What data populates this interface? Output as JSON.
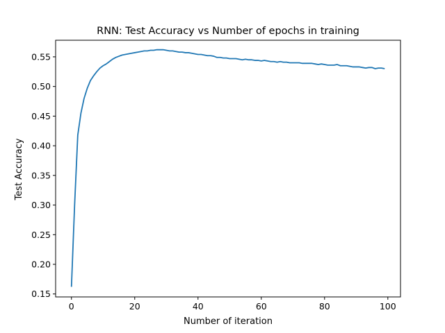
{
  "chart_data": {
    "type": "line",
    "title": "RNN: Test Accuracy vs Number of epochs in training",
    "xlabel": "Number of iteration",
    "ylabel": "Test Accuracy",
    "xlim": [
      -5,
      104
    ],
    "ylim": [
      0.145,
      0.578
    ],
    "xticks": [
      0,
      20,
      40,
      60,
      80,
      100
    ],
    "xtick_labels": [
      "0",
      "20",
      "40",
      "60",
      "80",
      "100"
    ],
    "yticks": [
      0.15,
      0.2,
      0.25,
      0.3,
      0.35,
      0.4,
      0.45,
      0.5,
      0.55
    ],
    "ytick_labels": [
      "0.15",
      "0.20",
      "0.25",
      "0.30",
      "0.35",
      "0.40",
      "0.45",
      "0.50",
      "0.55"
    ],
    "grid": false,
    "series": [
      {
        "color": "#1f77b4",
        "x": [
          0,
          1,
          2,
          3,
          4,
          5,
          6,
          7,
          8,
          9,
          10,
          11,
          12,
          13,
          14,
          15,
          16,
          17,
          18,
          19,
          20,
          21,
          22,
          23,
          24,
          25,
          26,
          27,
          28,
          29,
          30,
          31,
          32,
          33,
          34,
          35,
          36,
          37,
          38,
          39,
          40,
          41,
          42,
          43,
          44,
          45,
          46,
          47,
          48,
          49,
          50,
          51,
          52,
          53,
          54,
          55,
          56,
          57,
          58,
          59,
          60,
          61,
          62,
          63,
          64,
          65,
          66,
          67,
          68,
          69,
          70,
          71,
          72,
          73,
          74,
          75,
          76,
          77,
          78,
          79,
          80,
          81,
          82,
          83,
          84,
          85,
          86,
          87,
          88,
          89,
          90,
          91,
          92,
          93,
          94,
          95,
          96,
          97,
          98,
          99
        ],
        "y": [
          0.162,
          0.3,
          0.418,
          0.455,
          0.48,
          0.497,
          0.51,
          0.518,
          0.525,
          0.531,
          0.535,
          0.538,
          0.542,
          0.546,
          0.549,
          0.551,
          0.553,
          0.554,
          0.555,
          0.556,
          0.557,
          0.558,
          0.559,
          0.56,
          0.56,
          0.561,
          0.561,
          0.562,
          0.562,
          0.562,
          0.561,
          0.56,
          0.56,
          0.559,
          0.558,
          0.558,
          0.557,
          0.557,
          0.556,
          0.555,
          0.554,
          0.554,
          0.553,
          0.552,
          0.552,
          0.551,
          0.549,
          0.549,
          0.548,
          0.548,
          0.547,
          0.547,
          0.547,
          0.546,
          0.545,
          0.546,
          0.545,
          0.545,
          0.544,
          0.544,
          0.543,
          0.544,
          0.543,
          0.542,
          0.542,
          0.541,
          0.542,
          0.541,
          0.541,
          0.54,
          0.54,
          0.54,
          0.54,
          0.539,
          0.539,
          0.539,
          0.539,
          0.538,
          0.537,
          0.538,
          0.537,
          0.536,
          0.536,
          0.536,
          0.537,
          0.535,
          0.535,
          0.535,
          0.534,
          0.533,
          0.533,
          0.533,
          0.532,
          0.531,
          0.532,
          0.532,
          0.53,
          0.531,
          0.531,
          0.53
        ]
      }
    ]
  }
}
